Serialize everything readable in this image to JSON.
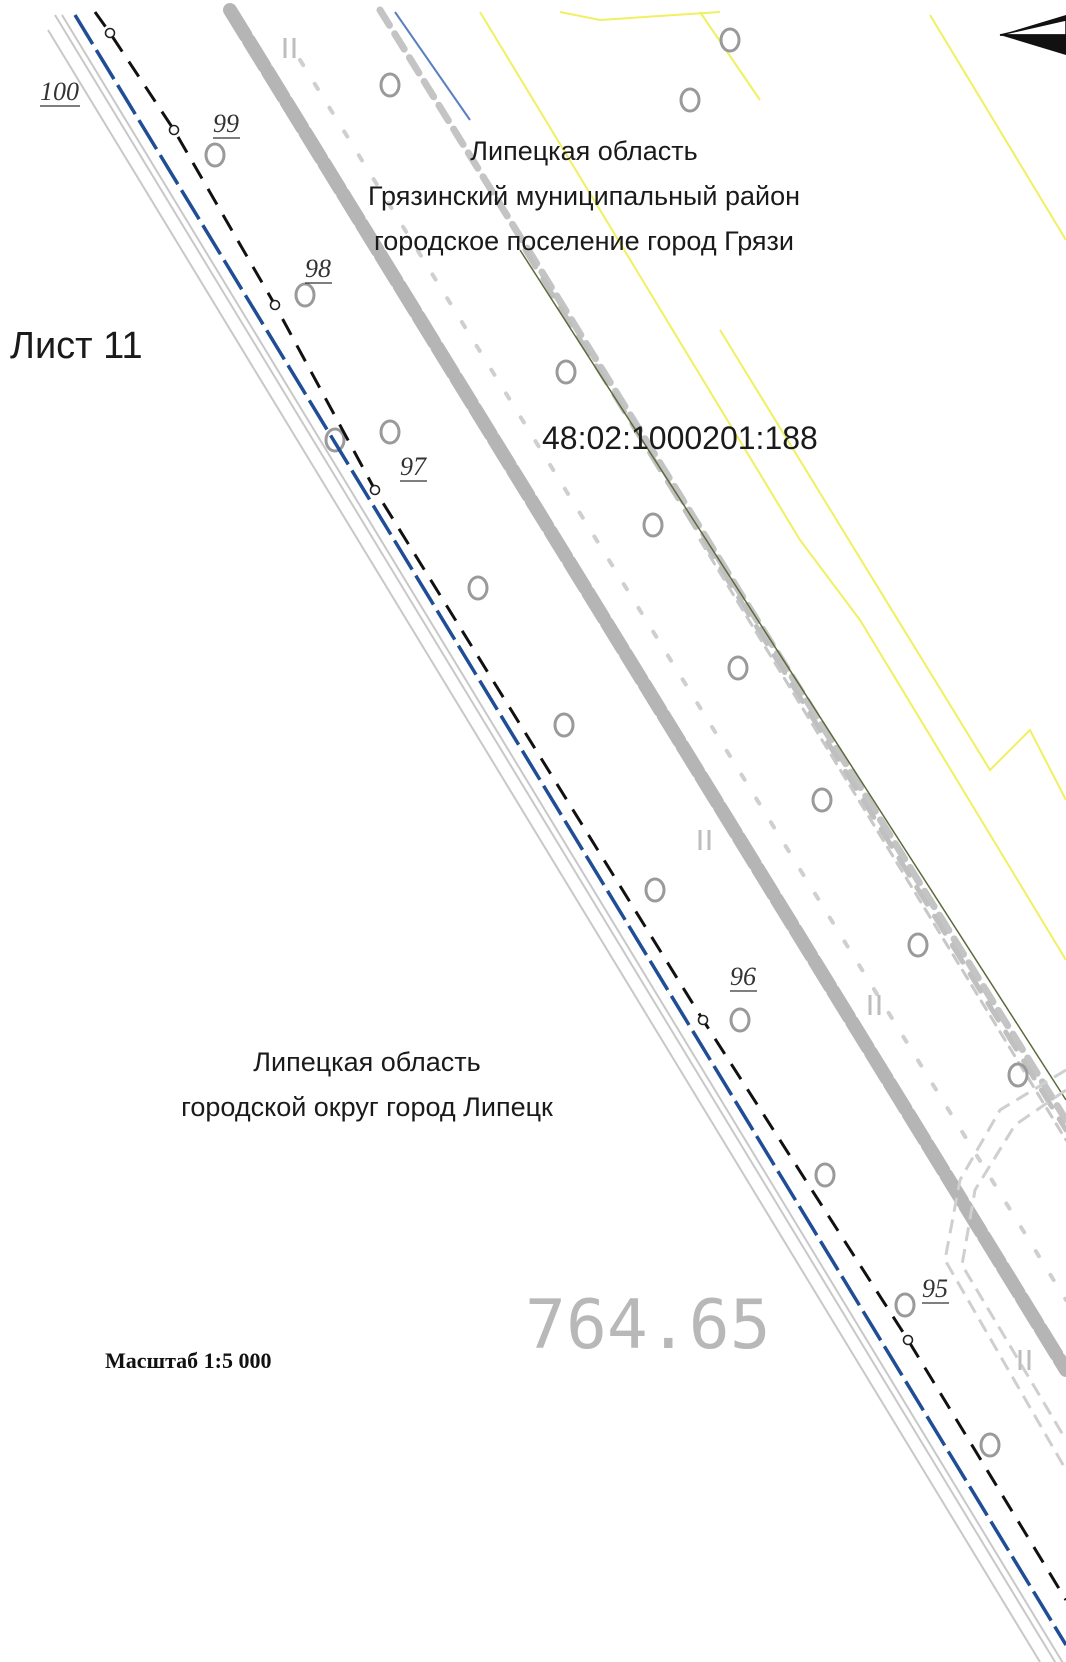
{
  "sheet": {
    "label": "Лист 11"
  },
  "regions": {
    "north": {
      "line1": "Липецкая область",
      "line2": "Грязинский муниципальный район",
      "line3": "городское поселение город Грязи"
    },
    "south": {
      "line1": "Липецкая область",
      "line2": "городской округ город Липецк"
    }
  },
  "parcel": {
    "cadastral_number": "48:02:1000201:188"
  },
  "boundary_points": [
    {
      "label": "100"
    },
    {
      "label": "99"
    },
    {
      "label": "98"
    },
    {
      "label": "97"
    },
    {
      "label": "96"
    },
    {
      "label": "95"
    }
  ],
  "measurement": {
    "value": "764.65"
  },
  "scale": {
    "label": "Масштаб 1:5 000"
  },
  "colors": {
    "municipal_boundary": "#1f4e96",
    "parcel_boundary_dashed": "#111111",
    "road_band": "#b5b5b5",
    "parcel_outline": "#f0f060",
    "background": "#ffffff"
  },
  "icons": {
    "north_arrow": "compass-arrow-icon"
  }
}
